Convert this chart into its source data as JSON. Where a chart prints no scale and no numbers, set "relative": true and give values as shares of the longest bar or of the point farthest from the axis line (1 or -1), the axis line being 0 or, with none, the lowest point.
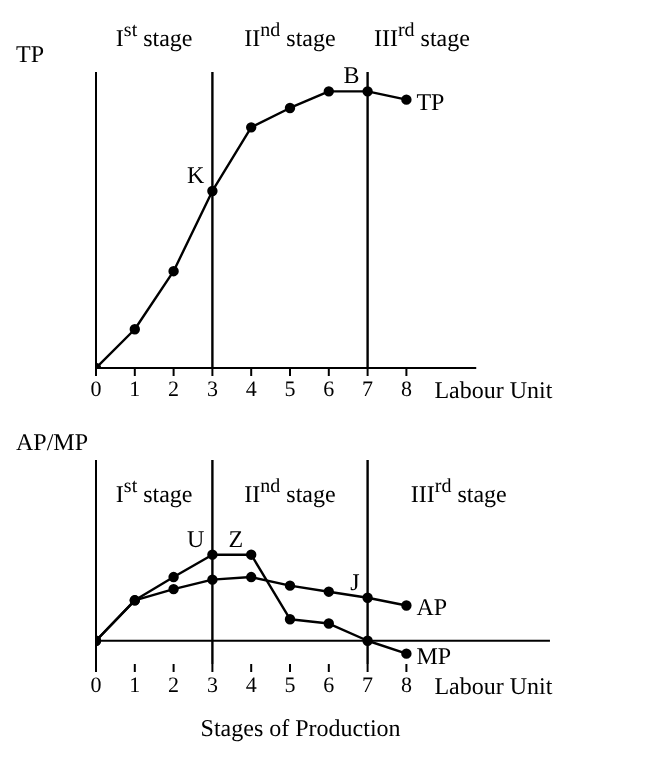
{
  "chart_data": [
    {
      "type": "line",
      "relative": true,
      "ylabel": "TP",
      "xlabel": "Labour Unit",
      "x": [
        0,
        1,
        2,
        3,
        4,
        5,
        6,
        7,
        8
      ],
      "xlim": [
        0,
        9.8
      ],
      "xticks": [
        0,
        1,
        2,
        3,
        4,
        5,
        6,
        7,
        8
      ],
      "marker": "circle",
      "series": [
        {
          "name": "TP",
          "color": "#000000",
          "values": [
            0,
            0.14,
            0.35,
            0.64,
            0.87,
            0.94,
            1,
            1,
            0.97
          ]
        }
      ],
      "ref_lines": [
        {
          "axis": "x",
          "value": 3,
          "color": "#000000"
        },
        {
          "axis": "x",
          "value": 7,
          "color": "#000000"
        }
      ],
      "annotations": [
        "I$^{st}$ stage",
        "II$^{nd}$ stage",
        "III$^{rd}$ stage",
        {
          "text": "K",
          "x": 3,
          "y": 0.64
        },
        {
          "text": "B",
          "x": 7,
          "y": 1
        }
      ]
    },
    {
      "type": "line",
      "relative": true,
      "ylabel": "AP/MP",
      "xlabel": "Labour Unit",
      "x": [
        0,
        1,
        2,
        3,
        4,
        5,
        6,
        7,
        8
      ],
      "xlim": [
        0,
        11.7
      ],
      "xticks": [
        0,
        1,
        2,
        3,
        4,
        5,
        6,
        7,
        8
      ],
      "marker": "circle",
      "series": [
        {
          "name": "AP",
          "color": "#000000",
          "values": [
            0,
            0.47,
            0.6,
            0.71,
            0.74,
            0.64,
            0.57,
            0.5,
            0.41
          ]
        },
        {
          "name": "MP",
          "color": "#000000",
          "values": [
            0,
            0.47,
            0.74,
            1,
            1,
            0.25,
            0.2,
            0,
            -0.15
          ]
        }
      ],
      "ref_lines": [
        {
          "axis": "x",
          "value": 3,
          "color": "#000000"
        },
        {
          "axis": "x",
          "value": 7,
          "color": "#000000"
        }
      ],
      "annotations": [
        "I$^{st}$ stage",
        "II$^{nd}$ stage",
        "III$^{rd}$ stage",
        {
          "text": "U",
          "x": 3,
          "y": 1
        },
        {
          "text": "Z",
          "x": 4,
          "y": 1
        },
        {
          "text": "J",
          "x": 7,
          "y": 0.5
        },
        "Stages of Production"
      ]
    }
  ]
}
